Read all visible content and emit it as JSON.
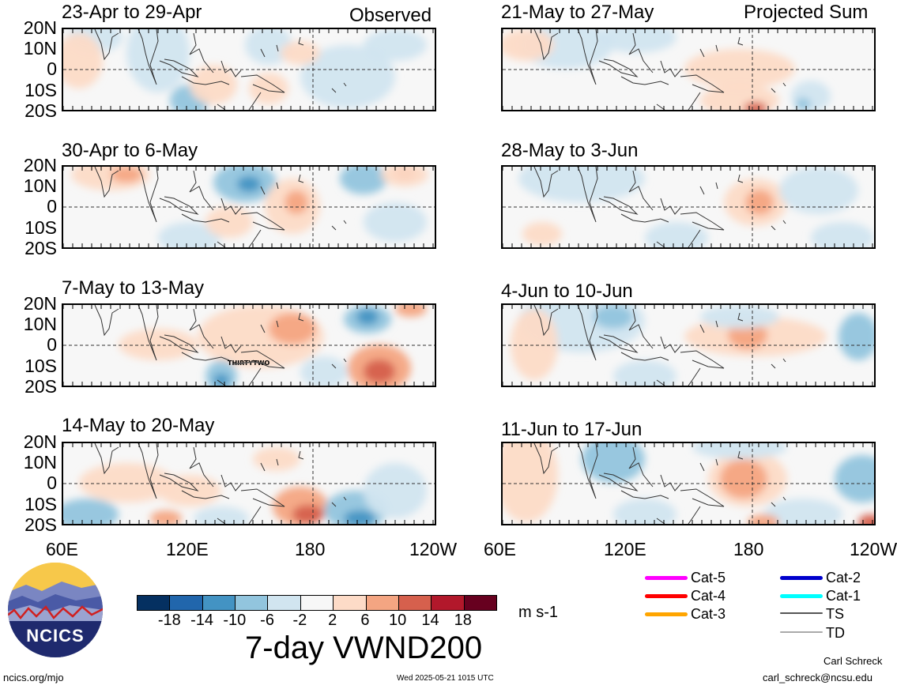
{
  "panels": [
    {
      "id": "p1",
      "col": 0,
      "row": 0,
      "period": "23-Apr to 29-Apr",
      "tag": "Observed"
    },
    {
      "id": "p2",
      "col": 0,
      "row": 1,
      "period": "30-Apr to 6-May",
      "tag": ""
    },
    {
      "id": "p3",
      "col": 0,
      "row": 2,
      "period": "7-May to 13-May",
      "tag": ""
    },
    {
      "id": "p4",
      "col": 0,
      "row": 3,
      "period": "14-May to 20-May",
      "tag": ""
    },
    {
      "id": "p5",
      "col": 1,
      "row": 0,
      "period": "21-May to 27-May",
      "tag": "Projected Sum"
    },
    {
      "id": "p6",
      "col": 1,
      "row": 1,
      "period": "28-May to 3-Jun",
      "tag": ""
    },
    {
      "id": "p7",
      "col": 1,
      "row": 2,
      "period": "4-Jun to 10-Jun",
      "tag": ""
    },
    {
      "id": "p8",
      "col": 1,
      "row": 3,
      "period": "11-Jun to 17-Jun",
      "tag": ""
    }
  ],
  "lat_labels": [
    "20N",
    "10N",
    "0",
    "10S",
    "20S"
  ],
  "lon_labels": [
    "60E",
    "120E",
    "180",
    "120W"
  ],
  "storm_label": "THIRTYTWO",
  "colorbar": {
    "colors": [
      "#053061",
      "#2166ac",
      "#4393c3",
      "#92c5de",
      "#d1e5f0",
      "#f7f7f7",
      "#fddbc7",
      "#f4a582",
      "#d6604d",
      "#b2182b",
      "#67001f"
    ],
    "ticks": [
      "-18",
      "-14",
      "-10",
      "-6",
      "-2",
      "2",
      "6",
      "10",
      "14",
      "18"
    ],
    "units": "m s-1"
  },
  "map_title": "7-day VWND200",
  "legend": [
    {
      "label": "Cat-5",
      "color": "#ff00ff"
    },
    {
      "label": "Cat-4",
      "color": "#ff0000"
    },
    {
      "label": "Cat-3",
      "color": "#ffa500"
    },
    {
      "label": "Cat-2",
      "color": "#0000cd"
    },
    {
      "label": "Cat-1",
      "color": "#00ffff"
    },
    {
      "label": "TS",
      "color": "#555555"
    },
    {
      "label": "TD",
      "color": "#aaaaaa"
    }
  ],
  "logo_text": "NCICS",
  "footer": {
    "left": "ncics.org/mjo",
    "center": "Wed 2025-05-21 1015 UTC",
    "author": "Carl Schreck",
    "email": "carl_schreck@ncsu.edu"
  }
}
